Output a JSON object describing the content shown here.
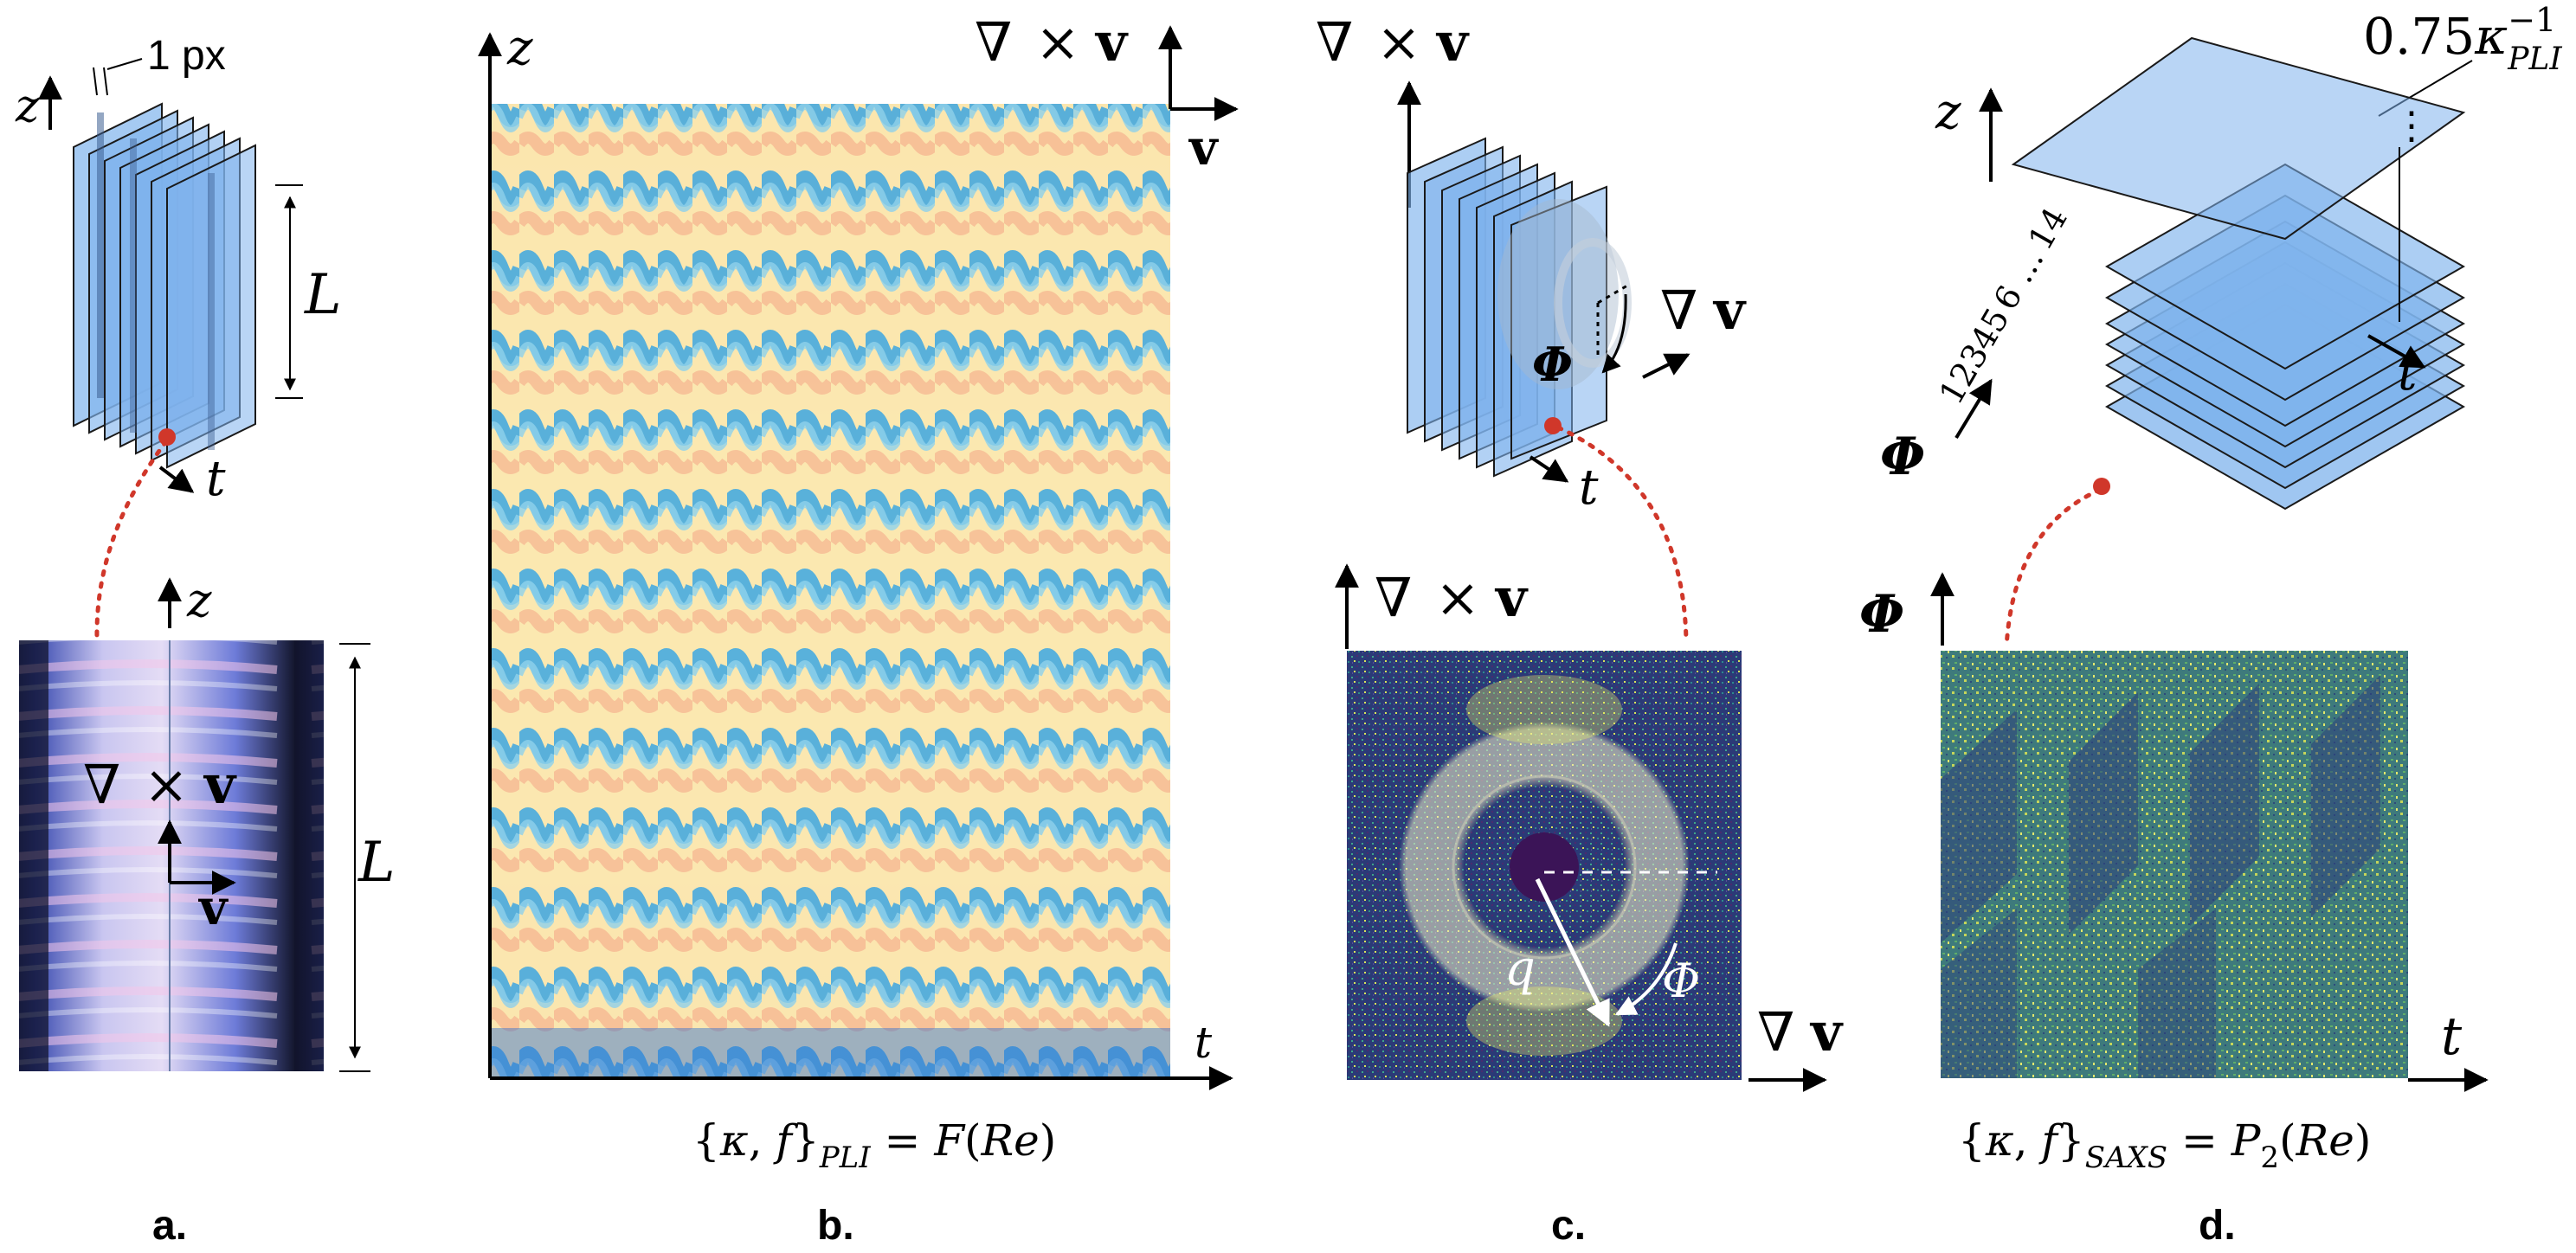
{
  "panels": {
    "a": {
      "label": "a.",
      "top_z": "z",
      "px_label": "1 px",
      "L_top": "L",
      "t_label": "t",
      "bottom_z": "z",
      "curl_nabla": "∇",
      "curl_times": "×",
      "curl_v": "v",
      "v_label": "v",
      "L_bottom": "L"
    },
    "b": {
      "label": "b.",
      "z_label": "z",
      "curl_nabla": "∇",
      "curl_times": "×",
      "curl_v": "v",
      "v_label": "v",
      "t_label": "t",
      "caption": "{κ, f}PLI = F(Re)",
      "caption_open": "{",
      "caption_kappa": "κ",
      "caption_comma": ", ",
      "caption_f": "f",
      "caption_close": "}",
      "caption_sub": "PLI",
      "caption_eq": " = ",
      "caption_F": "F",
      "caption_lp": "(",
      "caption_Re": "Re",
      "caption_rp": ")"
    },
    "c": {
      "label": "c.",
      "curl_nabla": "∇",
      "curl_times": "×",
      "curl_v": "v",
      "grad_nabla": "∇",
      "grad_v": "v",
      "phi_label": "Φ",
      "t_label": "t",
      "bottom_curl_nabla": "∇",
      "bottom_curl_times": "×",
      "bottom_curl_v": "v",
      "q_label": "q",
      "phi_arc": "Φ",
      "bottom_grad_nabla": "∇",
      "bottom_grad_v": "v"
    },
    "d": {
      "label": "d.",
      "kappa_coef": "0.75",
      "kappa_sym": "κ",
      "kappa_sup": "−1",
      "kappa_sub": "PLI",
      "z_label": "z",
      "t_label": "t",
      "phi_label": "Φ",
      "slice_1": "1",
      "slice_2": "2",
      "slice_3": "3",
      "slice_4": "4",
      "slice_5": "5",
      "slice_6": "6",
      "slice_14": "14",
      "ellipsis_v": "…",
      "ellipsis_r": "⋮",
      "bottom_phi": "Φ",
      "bottom_t": "t",
      "caption_open": "{",
      "caption_kappa": "κ",
      "caption_comma": ", ",
      "caption_f": "f",
      "caption_close": "}",
      "caption_sub": "SAXS",
      "caption_eq": " = ",
      "caption_P": "P",
      "caption_P_sub": "2",
      "caption_lp": "(",
      "caption_Re": "Re",
      "caption_rp": ")"
    }
  },
  "colors": {
    "slice_fill": "#7fb3ec",
    "slice_stroke": "#1a1a1a",
    "connector": "#d0372a",
    "saxs_dark": "#3b2a6b",
    "saxs_bright": "#e8ee5a",
    "pli_yellow": "#fbe7a6",
    "pli_blue": "#34a7e3",
    "pli_orange": "#f6b48f"
  }
}
